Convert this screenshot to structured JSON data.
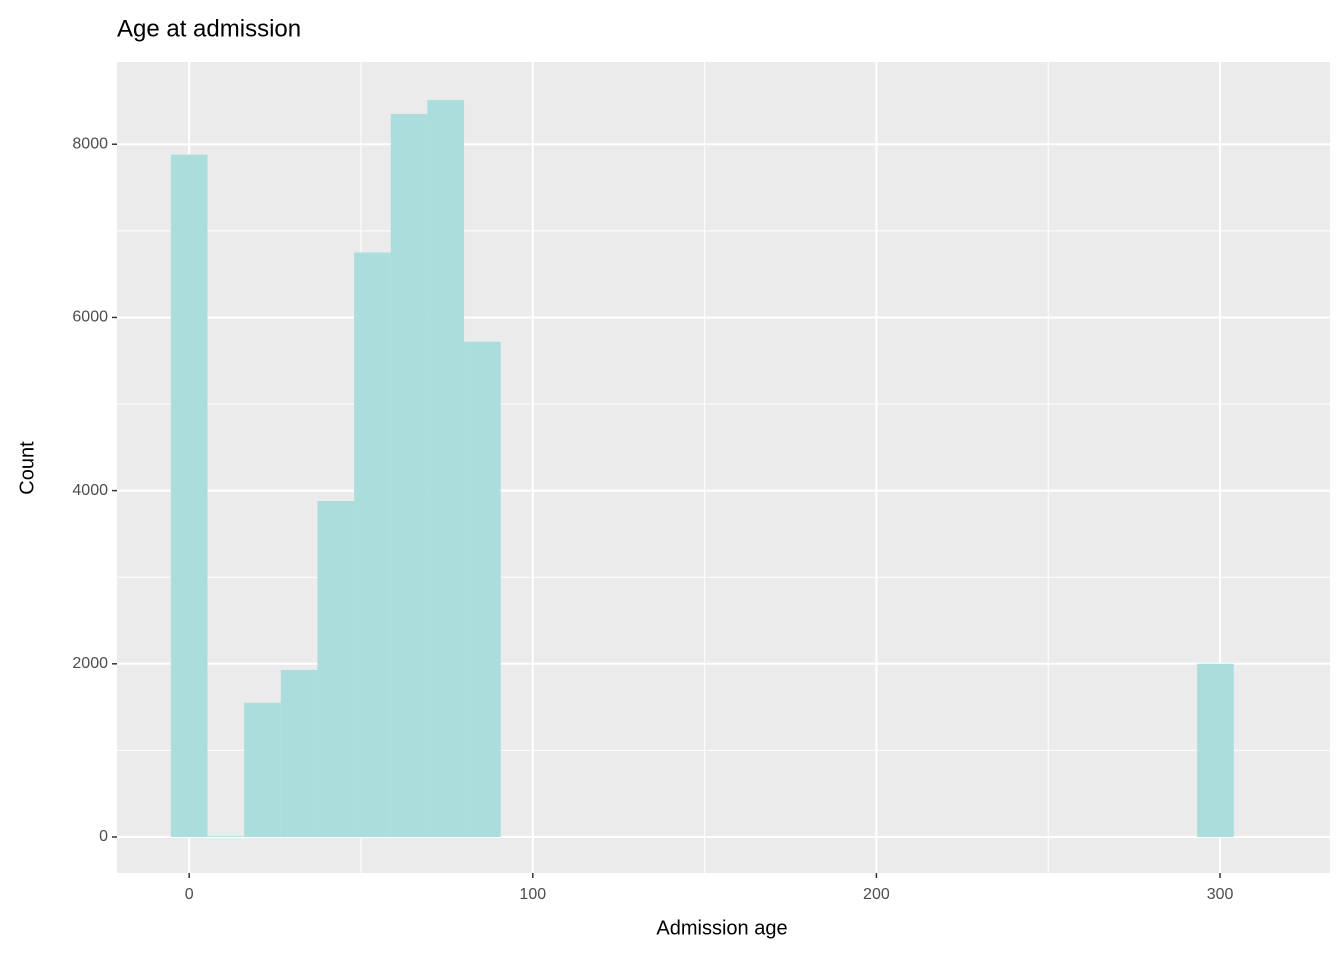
{
  "chart_data": {
    "type": "histogram",
    "title": "Age at admission",
    "x_label": "Admission age",
    "y_label": "Count",
    "bins": [
      -5.33,
      5.33,
      16,
      26.67,
      37.33,
      48,
      58.67,
      69.33,
      80,
      90.67,
      101.33,
      112,
      122.67,
      133.33,
      144,
      154.67,
      165.33,
      176,
      186.67,
      197.33,
      208,
      218.67,
      229.33,
      240,
      250.67,
      261.33,
      272,
      282.67,
      293.33,
      304
    ],
    "values": [
      7880,
      10,
      1550,
      1930,
      3880,
      6750,
      8350,
      8510,
      5720,
      0,
      0,
      0,
      0,
      0,
      0,
      0,
      0,
      0,
      0,
      0,
      0,
      0,
      0,
      0,
      0,
      0,
      0,
      0,
      2000
    ],
    "color": "#abdddd",
    "xlim": [
      -21,
      332
    ],
    "ylim": [
      -416,
      8950
    ],
    "xticks": [
      0,
      100,
      200,
      300
    ],
    "yticks": [
      0,
      2000,
      4000,
      6000,
      8000
    ],
    "xminor": [
      50,
      150,
      250
    ],
    "yminor": [
      1000,
      3000,
      5000,
      7000
    ],
    "grid": true
  }
}
